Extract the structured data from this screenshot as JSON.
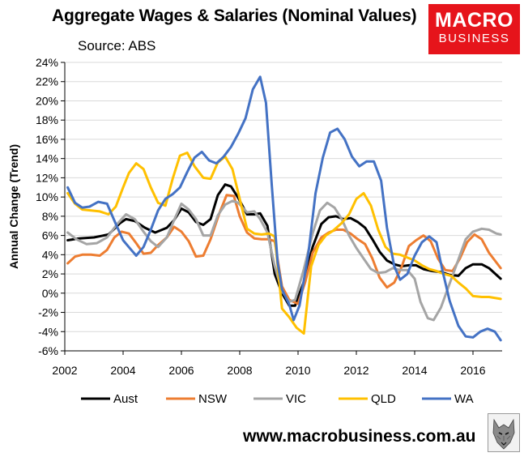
{
  "header": {
    "title": "Aggregate Wages & Salaries (Nominal Values)",
    "subtitle": "Source: ABS"
  },
  "logo": {
    "line1": "MACRO",
    "line2": "BUSINESS",
    "color": "#e6141b"
  },
  "footer": {
    "url": "www.macrobusiness.com.au",
    "icon": "wolf-logo-icon"
  },
  "chart_data": {
    "type": "line",
    "title": "Aggregate Wages & Salaries (Nominal Values)",
    "subtitle": "Source: ABS",
    "xlabel": "",
    "ylabel": "Annual Change (Trend)",
    "xlim": [
      2002,
      2017
    ],
    "ylim": [
      -6,
      24
    ],
    "x_ticks": [
      "2002",
      "2004",
      "2006",
      "2008",
      "2010",
      "2012",
      "2014",
      "2016"
    ],
    "y_ticks": [
      "24%",
      "22%",
      "20%",
      "18%",
      "16%",
      "14%",
      "12%",
      "10%",
      "8%",
      "6%",
      "4%",
      "2%",
      "0%",
      "-2%",
      "-4%",
      "-6%"
    ],
    "grid": true,
    "legend_position": "bottom",
    "series": [
      {
        "name": "Aust",
        "color": "#000000",
        "points": [
          [
            2002.1,
            5.5
          ],
          [
            2002.5,
            5.7
          ],
          [
            2003.0,
            5.8
          ],
          [
            2003.5,
            6.1
          ],
          [
            2003.9,
            7.3
          ],
          [
            2004.1,
            7.7
          ],
          [
            2004.4,
            7.5
          ],
          [
            2004.75,
            6.8
          ],
          [
            2005.1,
            6.3
          ],
          [
            2005.5,
            6.8
          ],
          [
            2005.75,
            7.6
          ],
          [
            2006.0,
            8.8
          ],
          [
            2006.25,
            8.4
          ],
          [
            2006.5,
            7.4
          ],
          [
            2006.75,
            7.1
          ],
          [
            2007.0,
            7.7
          ],
          [
            2007.25,
            10.2
          ],
          [
            2007.5,
            11.3
          ],
          [
            2007.7,
            11.1
          ],
          [
            2007.95,
            9.9
          ],
          [
            2008.25,
            8.2
          ],
          [
            2008.5,
            8.2
          ],
          [
            2008.7,
            8.3
          ],
          [
            2008.95,
            7.0
          ],
          [
            2009.2,
            2.0
          ],
          [
            2009.45,
            0.0
          ],
          [
            2009.7,
            -1.3
          ],
          [
            2009.9,
            -1.3
          ],
          [
            2010.2,
            1.2
          ],
          [
            2010.5,
            4.8
          ],
          [
            2010.8,
            7.2
          ],
          [
            2011.05,
            7.9
          ],
          [
            2011.3,
            8.0
          ],
          [
            2011.55,
            7.7
          ],
          [
            2011.8,
            7.8
          ],
          [
            2012.05,
            7.4
          ],
          [
            2012.3,
            6.8
          ],
          [
            2012.55,
            5.6
          ],
          [
            2012.8,
            4.3
          ],
          [
            2013.05,
            3.4
          ],
          [
            2013.3,
            3.0
          ],
          [
            2013.55,
            2.8
          ],
          [
            2013.8,
            2.9
          ],
          [
            2014.05,
            2.9
          ],
          [
            2014.3,
            2.5
          ],
          [
            2014.6,
            2.3
          ],
          [
            2014.9,
            2.2
          ],
          [
            2015.2,
            1.9
          ],
          [
            2015.5,
            1.8
          ],
          [
            2015.75,
            2.6
          ],
          [
            2016.0,
            3.0
          ],
          [
            2016.3,
            3.0
          ],
          [
            2016.55,
            2.6
          ],
          [
            2016.95,
            1.5
          ]
        ]
      },
      {
        "name": "NSW",
        "color": "#ed7d31",
        "points": [
          [
            2002.1,
            3.1
          ],
          [
            2002.35,
            3.8
          ],
          [
            2002.6,
            4.0
          ],
          [
            2002.9,
            4.0
          ],
          [
            2003.2,
            3.9
          ],
          [
            2003.45,
            4.5
          ],
          [
            2003.7,
            5.8
          ],
          [
            2003.95,
            6.4
          ],
          [
            2004.2,
            6.2
          ],
          [
            2004.45,
            5.2
          ],
          [
            2004.7,
            4.1
          ],
          [
            2004.95,
            4.2
          ],
          [
            2005.2,
            5.0
          ],
          [
            2005.5,
            5.8
          ],
          [
            2005.75,
            6.9
          ],
          [
            2006.0,
            6.4
          ],
          [
            2006.25,
            5.4
          ],
          [
            2006.5,
            3.8
          ],
          [
            2006.75,
            3.9
          ],
          [
            2007.0,
            5.6
          ],
          [
            2007.3,
            8.3
          ],
          [
            2007.55,
            10.2
          ],
          [
            2007.8,
            10.1
          ],
          [
            2008.0,
            8.0
          ],
          [
            2008.25,
            6.3
          ],
          [
            2008.5,
            5.7
          ],
          [
            2008.75,
            5.6
          ],
          [
            2009.0,
            5.6
          ],
          [
            2009.2,
            5.4
          ],
          [
            2009.45,
            0.7
          ],
          [
            2009.7,
            -0.7
          ],
          [
            2010.0,
            -1.1
          ],
          [
            2010.25,
            1.2
          ],
          [
            2010.5,
            4.2
          ],
          [
            2010.8,
            5.8
          ],
          [
            2011.05,
            6.3
          ],
          [
            2011.3,
            6.6
          ],
          [
            2011.55,
            6.6
          ],
          [
            2011.8,
            6.2
          ],
          [
            2012.05,
            5.6
          ],
          [
            2012.3,
            5.1
          ],
          [
            2012.55,
            3.6
          ],
          [
            2012.8,
            1.6
          ],
          [
            2013.05,
            0.6
          ],
          [
            2013.3,
            1.1
          ],
          [
            2013.55,
            2.7
          ],
          [
            2013.8,
            4.9
          ],
          [
            2014.05,
            5.5
          ],
          [
            2014.3,
            6.0
          ],
          [
            2014.55,
            5.4
          ],
          [
            2014.8,
            3.6
          ],
          [
            2015.05,
            2.4
          ],
          [
            2015.3,
            2.3
          ],
          [
            2015.55,
            3.6
          ],
          [
            2015.8,
            5.3
          ],
          [
            2016.05,
            6.1
          ],
          [
            2016.3,
            5.6
          ],
          [
            2016.55,
            4.2
          ],
          [
            2016.95,
            2.6
          ]
        ]
      },
      {
        "name": "VIC",
        "color": "#a5a5a5",
        "points": [
          [
            2002.1,
            6.3
          ],
          [
            2002.4,
            5.6
          ],
          [
            2002.75,
            5.1
          ],
          [
            2003.1,
            5.2
          ],
          [
            2003.45,
            5.8
          ],
          [
            2003.8,
            7.2
          ],
          [
            2004.1,
            8.2
          ],
          [
            2004.4,
            7.7
          ],
          [
            2004.7,
            6.4
          ],
          [
            2004.95,
            5.4
          ],
          [
            2005.2,
            4.8
          ],
          [
            2005.5,
            5.8
          ],
          [
            2005.75,
            7.6
          ],
          [
            2006.0,
            9.3
          ],
          [
            2006.25,
            8.7
          ],
          [
            2006.5,
            7.7
          ],
          [
            2006.75,
            6.0
          ],
          [
            2007.0,
            6.0
          ],
          [
            2007.25,
            8.1
          ],
          [
            2007.5,
            9.2
          ],
          [
            2007.75,
            9.6
          ],
          [
            2007.95,
            9.4
          ],
          [
            2008.25,
            8.4
          ],
          [
            2008.5,
            8.5
          ],
          [
            2008.7,
            7.7
          ],
          [
            2008.95,
            6.3
          ],
          [
            2009.2,
            2.8
          ],
          [
            2009.45,
            0.2
          ],
          [
            2009.7,
            -0.9
          ],
          [
            2009.9,
            -0.7
          ],
          [
            2010.2,
            2.5
          ],
          [
            2010.5,
            6.2
          ],
          [
            2010.75,
            8.6
          ],
          [
            2011.0,
            9.4
          ],
          [
            2011.25,
            8.9
          ],
          [
            2011.5,
            7.7
          ],
          [
            2011.75,
            6.0
          ],
          [
            2012.0,
            4.7
          ],
          [
            2012.25,
            3.6
          ],
          [
            2012.5,
            2.5
          ],
          [
            2012.75,
            2.1
          ],
          [
            2013.0,
            2.2
          ],
          [
            2013.25,
            2.6
          ],
          [
            2013.5,
            2.4
          ],
          [
            2013.75,
            2.4
          ],
          [
            2014.0,
            1.5
          ],
          [
            2014.2,
            -0.9
          ],
          [
            2014.45,
            -2.6
          ],
          [
            2014.65,
            -2.8
          ],
          [
            2014.9,
            -1.5
          ],
          [
            2015.2,
            1.0
          ],
          [
            2015.5,
            3.5
          ],
          [
            2015.75,
            5.6
          ],
          [
            2016.0,
            6.4
          ],
          [
            2016.3,
            6.7
          ],
          [
            2016.55,
            6.6
          ],
          [
            2016.8,
            6.2
          ],
          [
            2016.95,
            6.1
          ]
        ]
      },
      {
        "name": "QLD",
        "color": "#ffc000",
        "points": [
          [
            2002.1,
            10.4
          ],
          [
            2002.35,
            9.3
          ],
          [
            2002.6,
            8.7
          ],
          [
            2002.9,
            8.6
          ],
          [
            2003.2,
            8.5
          ],
          [
            2003.5,
            8.2
          ],
          [
            2003.75,
            9.0
          ],
          [
            2004.0,
            11.0
          ],
          [
            2004.2,
            12.5
          ],
          [
            2004.45,
            13.5
          ],
          [
            2004.7,
            12.9
          ],
          [
            2004.95,
            11.0
          ],
          [
            2005.2,
            9.4
          ],
          [
            2005.45,
            9.1
          ],
          [
            2005.7,
            11.9
          ],
          [
            2005.95,
            14.3
          ],
          [
            2006.2,
            14.6
          ],
          [
            2006.45,
            13.2
          ],
          [
            2006.75,
            12.0
          ],
          [
            2007.0,
            11.9
          ],
          [
            2007.25,
            13.6
          ],
          [
            2007.5,
            14.2
          ],
          [
            2007.75,
            12.9
          ],
          [
            2008.0,
            9.8
          ],
          [
            2008.25,
            6.7
          ],
          [
            2008.5,
            6.2
          ],
          [
            2008.75,
            6.1
          ],
          [
            2009.0,
            6.2
          ],
          [
            2009.2,
            5.9
          ],
          [
            2009.45,
            -1.6
          ],
          [
            2009.7,
            -2.5
          ],
          [
            2009.95,
            -3.6
          ],
          [
            2010.2,
            -4.2
          ],
          [
            2010.45,
            2.8
          ],
          [
            2010.7,
            5.0
          ],
          [
            2010.95,
            6.0
          ],
          [
            2011.2,
            6.5
          ],
          [
            2011.5,
            7.3
          ],
          [
            2011.75,
            8.2
          ],
          [
            2012.0,
            9.8
          ],
          [
            2012.25,
            10.4
          ],
          [
            2012.5,
            9.1
          ],
          [
            2012.75,
            6.6
          ],
          [
            2013.0,
            4.8
          ],
          [
            2013.25,
            4.1
          ],
          [
            2013.5,
            4.0
          ],
          [
            2013.75,
            3.7
          ],
          [
            2014.0,
            3.4
          ],
          [
            2014.25,
            2.9
          ],
          [
            2014.5,
            2.5
          ],
          [
            2014.75,
            2.3
          ],
          [
            2015.0,
            2.0
          ],
          [
            2015.25,
            1.8
          ],
          [
            2015.5,
            1.1
          ],
          [
            2015.75,
            0.5
          ],
          [
            2016.0,
            -0.3
          ],
          [
            2016.3,
            -0.4
          ],
          [
            2016.55,
            -0.4
          ],
          [
            2016.95,
            -0.6
          ]
        ]
      },
      {
        "name": "WA",
        "color": "#4472c4",
        "points": [
          [
            2002.1,
            11.0
          ],
          [
            2002.35,
            9.4
          ],
          [
            2002.6,
            8.9
          ],
          [
            2002.85,
            9.0
          ],
          [
            2003.15,
            9.5
          ],
          [
            2003.45,
            9.3
          ],
          [
            2003.75,
            7.2
          ],
          [
            2004.0,
            5.5
          ],
          [
            2004.25,
            4.6
          ],
          [
            2004.45,
            3.9
          ],
          [
            2004.7,
            4.8
          ],
          [
            2004.95,
            6.6
          ],
          [
            2005.2,
            8.6
          ],
          [
            2005.45,
            9.8
          ],
          [
            2005.7,
            10.3
          ],
          [
            2005.95,
            11.0
          ],
          [
            2006.2,
            12.6
          ],
          [
            2006.45,
            14.1
          ],
          [
            2006.7,
            14.7
          ],
          [
            2006.95,
            13.8
          ],
          [
            2007.2,
            13.5
          ],
          [
            2007.45,
            14.2
          ],
          [
            2007.7,
            15.2
          ],
          [
            2007.95,
            16.6
          ],
          [
            2008.2,
            18.2
          ],
          [
            2008.45,
            21.2
          ],
          [
            2008.7,
            22.5
          ],
          [
            2008.9,
            19.8
          ],
          [
            2009.1,
            11.2
          ],
          [
            2009.3,
            3.2
          ],
          [
            2009.45,
            0.4
          ],
          [
            2009.7,
            -1.2
          ],
          [
            2009.85,
            -2.8
          ],
          [
            2010.05,
            -1.3
          ],
          [
            2010.35,
            4.0
          ],
          [
            2010.6,
            10.4
          ],
          [
            2010.85,
            14.1
          ],
          [
            2011.1,
            16.7
          ],
          [
            2011.35,
            17.1
          ],
          [
            2011.6,
            16.0
          ],
          [
            2011.85,
            14.2
          ],
          [
            2012.1,
            13.2
          ],
          [
            2012.35,
            13.7
          ],
          [
            2012.6,
            13.7
          ],
          [
            2012.85,
            11.7
          ],
          [
            2013.05,
            6.8
          ],
          [
            2013.3,
            2.8
          ],
          [
            2013.5,
            1.4
          ],
          [
            2013.75,
            2.0
          ],
          [
            2014.0,
            3.9
          ],
          [
            2014.25,
            5.3
          ],
          [
            2014.5,
            5.9
          ],
          [
            2014.75,
            5.3
          ],
          [
            2014.95,
            2.4
          ],
          [
            2015.2,
            -0.8
          ],
          [
            2015.5,
            -3.4
          ],
          [
            2015.75,
            -4.5
          ],
          [
            2016.0,
            -4.6
          ],
          [
            2016.25,
            -4.0
          ],
          [
            2016.5,
            -3.7
          ],
          [
            2016.75,
            -4.0
          ],
          [
            2016.95,
            -4.9
          ]
        ]
      }
    ]
  }
}
